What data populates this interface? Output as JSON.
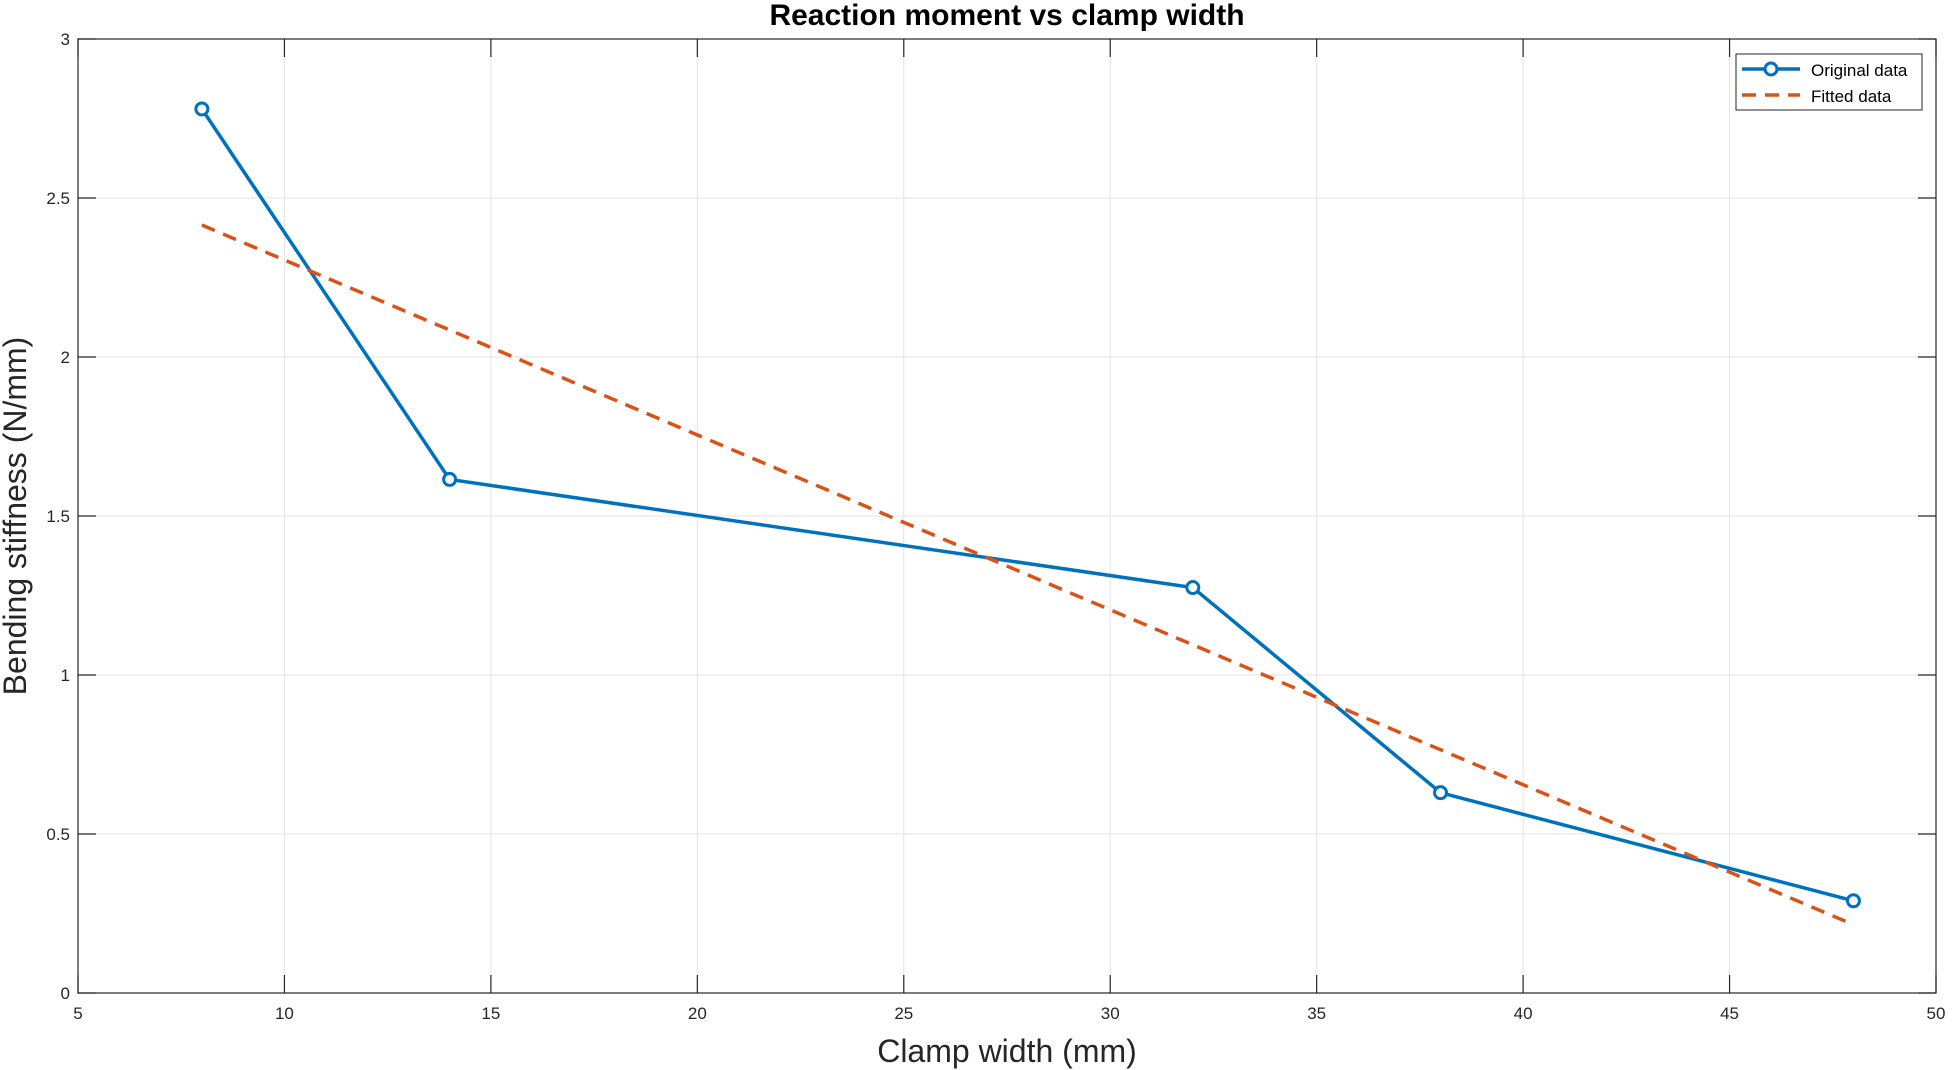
{
  "chart_data": {
    "type": "line",
    "title": "Reaction moment vs clamp width",
    "xlabel": "Clamp width (mm)",
    "ylabel": "Bending stiffness (N/mm)",
    "xlim": [
      5,
      50
    ],
    "ylim": [
      0,
      3
    ],
    "xticks": [
      5,
      10,
      15,
      20,
      25,
      30,
      35,
      40,
      45,
      50
    ],
    "yticks": [
      0,
      0.5,
      1,
      1.5,
      2,
      2.5,
      3
    ],
    "grid": true,
    "legend_position": "top-right",
    "series": [
      {
        "name": "Original data",
        "style": "solid-line-circle-markers",
        "color": "#0072BD",
        "x": [
          8,
          14,
          32,
          38,
          48
        ],
        "y": [
          2.78,
          1.615,
          1.275,
          0.63,
          0.29
        ]
      },
      {
        "name": "Fitted data",
        "style": "dashed-line",
        "color": "#D95319",
        "x": [
          8,
          48
        ],
        "y": [
          2.415,
          0.215
        ]
      }
    ]
  }
}
